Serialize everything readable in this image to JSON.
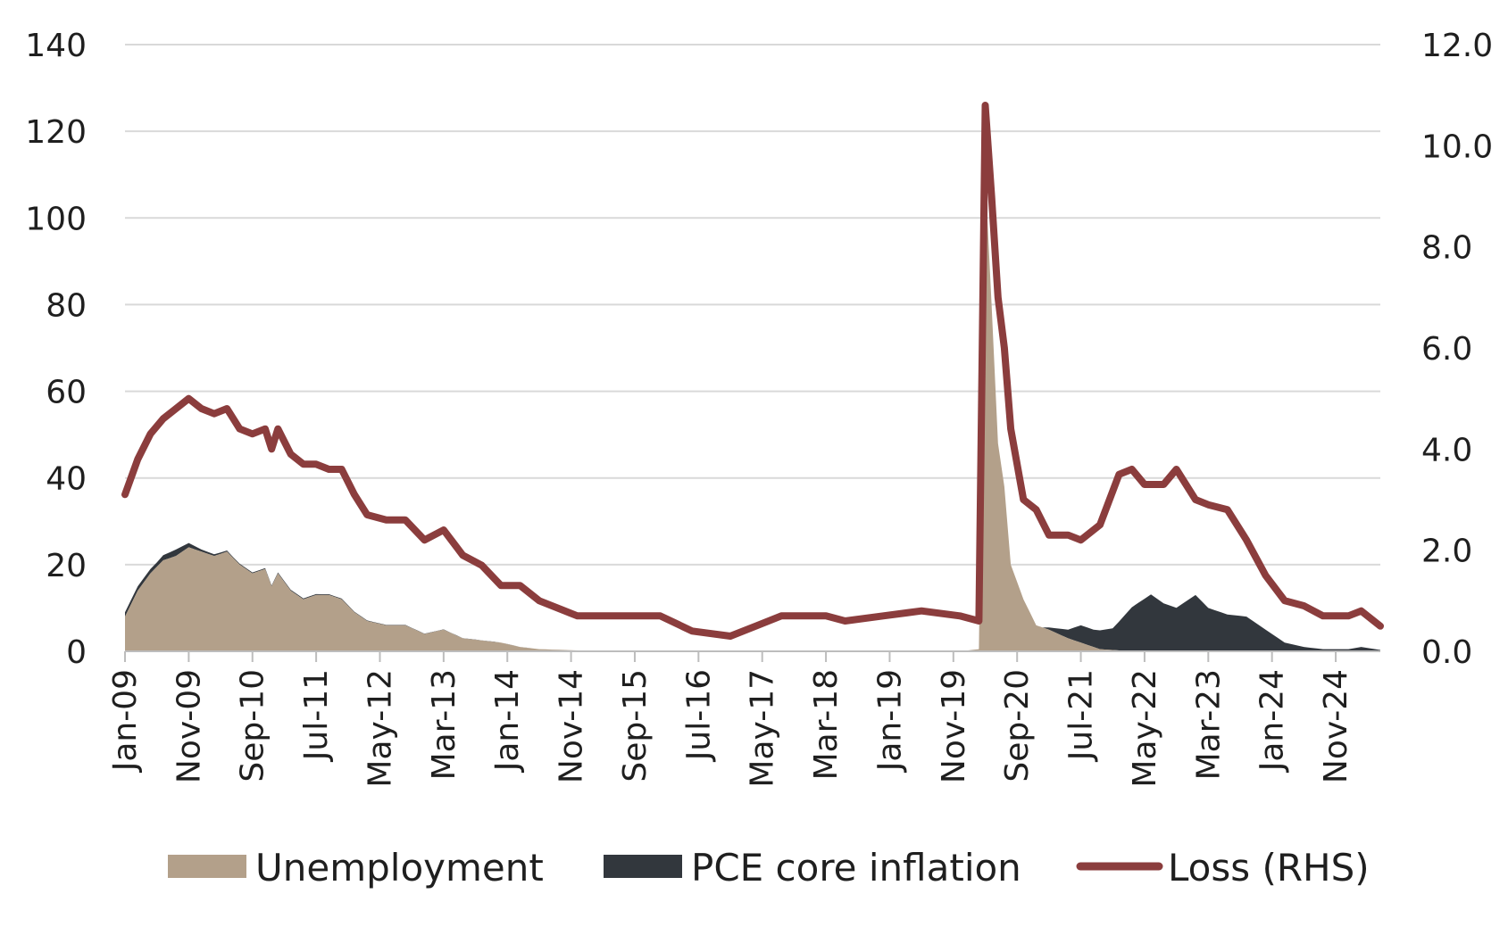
{
  "chart_data": {
    "type": "area",
    "title": "",
    "colors": {
      "unemployment": "#b3a08a",
      "pce_core_inflation": "#32373d",
      "loss": "#8b3d3d",
      "grid": "#d9d9d9"
    },
    "left_axis": {
      "ylim": [
        0,
        140
      ],
      "ticks": [
        "0",
        "20",
        "40",
        "60",
        "80",
        "100",
        "120",
        "140"
      ]
    },
    "right_axis": {
      "ylim": [
        0,
        12
      ],
      "ticks": [
        "0.0",
        "2.0",
        "4.0",
        "6.0",
        "8.0",
        "10.0",
        "12.0"
      ]
    },
    "x_axis": {
      "range": [
        "2009-01",
        "2025-06"
      ],
      "tick_labels": [
        "Jan-09",
        "Nov-09",
        "Sep-10",
        "Jul-11",
        "May-12",
        "Mar-13",
        "Jan-14",
        "Nov-14",
        "Sep-15",
        "Jul-16",
        "May-17",
        "Mar-18",
        "Jan-19",
        "Nov-19",
        "Sep-20",
        "Jul-21",
        "May-22",
        "Mar-23",
        "Jan-24",
        "Nov-24"
      ]
    },
    "grid": true,
    "legend_position": "bottom",
    "series": [
      {
        "name": "Unemployment",
        "axis": "left",
        "kind": "area",
        "points": [
          [
            "2009-01",
            8
          ],
          [
            "2009-03",
            14
          ],
          [
            "2009-05",
            18
          ],
          [
            "2009-07",
            21
          ],
          [
            "2009-09",
            22
          ],
          [
            "2009-11",
            24
          ],
          [
            "2010-01",
            23
          ],
          [
            "2010-03",
            22
          ],
          [
            "2010-05",
            23
          ],
          [
            "2010-07",
            20
          ],
          [
            "2010-09",
            18
          ],
          [
            "2010-11",
            19
          ],
          [
            "2010-12",
            15
          ],
          [
            "2011-01",
            18
          ],
          [
            "2011-03",
            14
          ],
          [
            "2011-05",
            12
          ],
          [
            "2011-07",
            13
          ],
          [
            "2011-09",
            13
          ],
          [
            "2011-11",
            12
          ],
          [
            "2012-01",
            9
          ],
          [
            "2012-03",
            7
          ],
          [
            "2012-06",
            6
          ],
          [
            "2012-09",
            6
          ],
          [
            "2012-12",
            4
          ],
          [
            "2013-03",
            5
          ],
          [
            "2013-06",
            3
          ],
          [
            "2013-09",
            2.5
          ],
          [
            "2013-12",
            2
          ],
          [
            "2014-03",
            1
          ],
          [
            "2014-06",
            0.5
          ],
          [
            "2014-12",
            0.2
          ],
          [
            "2015-06",
            0.2
          ],
          [
            "2016-01",
            0
          ],
          [
            "2019-12",
            0
          ],
          [
            "2020-03",
            0.5
          ],
          [
            "2020-04",
            110
          ],
          [
            "2020-05",
            80
          ],
          [
            "2020-06",
            48
          ],
          [
            "2020-07",
            38
          ],
          [
            "2020-08",
            20
          ],
          [
            "2020-10",
            12
          ],
          [
            "2020-12",
            6
          ],
          [
            "2021-02",
            5
          ],
          [
            "2021-05",
            3
          ],
          [
            "2021-07",
            2
          ],
          [
            "2021-10",
            0.5
          ],
          [
            "2022-01",
            0.2
          ],
          [
            "2023-01",
            0
          ],
          [
            "2025-06",
            0
          ]
        ]
      },
      {
        "name": "PCE core inflation",
        "axis": "left",
        "kind": "area",
        "stacked_on": "Unemployment",
        "points": [
          [
            "2009-01",
            1
          ],
          [
            "2009-06",
            1
          ],
          [
            "2009-09",
            1.5
          ],
          [
            "2010-01",
            0.5
          ],
          [
            "2010-06",
            0.2
          ],
          [
            "2011-06",
            0.2
          ],
          [
            "2012-06",
            0.1
          ],
          [
            "2014-06",
            0
          ],
          [
            "2021-01",
            0
          ],
          [
            "2021-03",
            1
          ],
          [
            "2021-05",
            2
          ],
          [
            "2021-07",
            4
          ],
          [
            "2021-09",
            4
          ],
          [
            "2021-12",
            5
          ],
          [
            "2022-03",
            10
          ],
          [
            "2022-06",
            13
          ],
          [
            "2022-08",
            11
          ],
          [
            "2022-10",
            10
          ],
          [
            "2023-01",
            13
          ],
          [
            "2023-03",
            10
          ],
          [
            "2023-06",
            8.5
          ],
          [
            "2023-09",
            8
          ],
          [
            "2023-12",
            5
          ],
          [
            "2024-03",
            2
          ],
          [
            "2024-06",
            1
          ],
          [
            "2024-09",
            0.5
          ],
          [
            "2025-01",
            0.5
          ],
          [
            "2025-03",
            1
          ],
          [
            "2025-06",
            0.3
          ]
        ]
      },
      {
        "name": "Loss (RHS)",
        "axis": "right",
        "kind": "line",
        "points": [
          [
            "2009-01",
            3.1
          ],
          [
            "2009-03",
            3.8
          ],
          [
            "2009-05",
            4.3
          ],
          [
            "2009-07",
            4.6
          ],
          [
            "2009-09",
            4.8
          ],
          [
            "2009-11",
            5.0
          ],
          [
            "2010-01",
            4.8
          ],
          [
            "2010-03",
            4.7
          ],
          [
            "2010-05",
            4.8
          ],
          [
            "2010-07",
            4.4
          ],
          [
            "2010-09",
            4.3
          ],
          [
            "2010-11",
            4.4
          ],
          [
            "2010-12",
            4.0
          ],
          [
            "2011-01",
            4.4
          ],
          [
            "2011-03",
            3.9
          ],
          [
            "2011-05",
            3.7
          ],
          [
            "2011-07",
            3.7
          ],
          [
            "2011-09",
            3.6
          ],
          [
            "2011-11",
            3.6
          ],
          [
            "2012-01",
            3.1
          ],
          [
            "2012-03",
            2.7
          ],
          [
            "2012-06",
            2.6
          ],
          [
            "2012-09",
            2.6
          ],
          [
            "2012-12",
            2.2
          ],
          [
            "2013-03",
            2.4
          ],
          [
            "2013-06",
            1.9
          ],
          [
            "2013-09",
            1.7
          ],
          [
            "2013-12",
            1.3
          ],
          [
            "2014-03",
            1.3
          ],
          [
            "2014-06",
            1.0
          ],
          [
            "2014-12",
            0.7
          ],
          [
            "2015-06",
            0.7
          ],
          [
            "2016-01",
            0.7
          ],
          [
            "2016-06",
            0.4
          ],
          [
            "2016-12",
            0.3
          ],
          [
            "2017-04",
            0.5
          ],
          [
            "2017-08",
            0.7
          ],
          [
            "2018-03",
            0.7
          ],
          [
            "2018-06",
            0.6
          ],
          [
            "2018-12",
            0.7
          ],
          [
            "2019-06",
            0.8
          ],
          [
            "2019-12",
            0.7
          ],
          [
            "2020-03",
            0.6
          ],
          [
            "2020-04",
            10.8
          ],
          [
            "2020-05",
            9.0
          ],
          [
            "2020-06",
            7.0
          ],
          [
            "2020-07",
            6.0
          ],
          [
            "2020-08",
            4.4
          ],
          [
            "2020-10",
            3.0
          ],
          [
            "2020-12",
            2.8
          ],
          [
            "2021-02",
            2.3
          ],
          [
            "2021-05",
            2.3
          ],
          [
            "2021-07",
            2.2
          ],
          [
            "2021-10",
            2.5
          ],
          [
            "2022-01",
            3.5
          ],
          [
            "2022-03",
            3.6
          ],
          [
            "2022-05",
            3.3
          ],
          [
            "2022-08",
            3.3
          ],
          [
            "2022-10",
            3.6
          ],
          [
            "2023-01",
            3.0
          ],
          [
            "2023-03",
            2.9
          ],
          [
            "2023-06",
            2.8
          ],
          [
            "2023-09",
            2.2
          ],
          [
            "2023-12",
            1.5
          ],
          [
            "2024-03",
            1.0
          ],
          [
            "2024-06",
            0.9
          ],
          [
            "2024-09",
            0.7
          ],
          [
            "2025-01",
            0.7
          ],
          [
            "2025-03",
            0.8
          ],
          [
            "2025-06",
            0.5
          ]
        ]
      }
    ]
  }
}
